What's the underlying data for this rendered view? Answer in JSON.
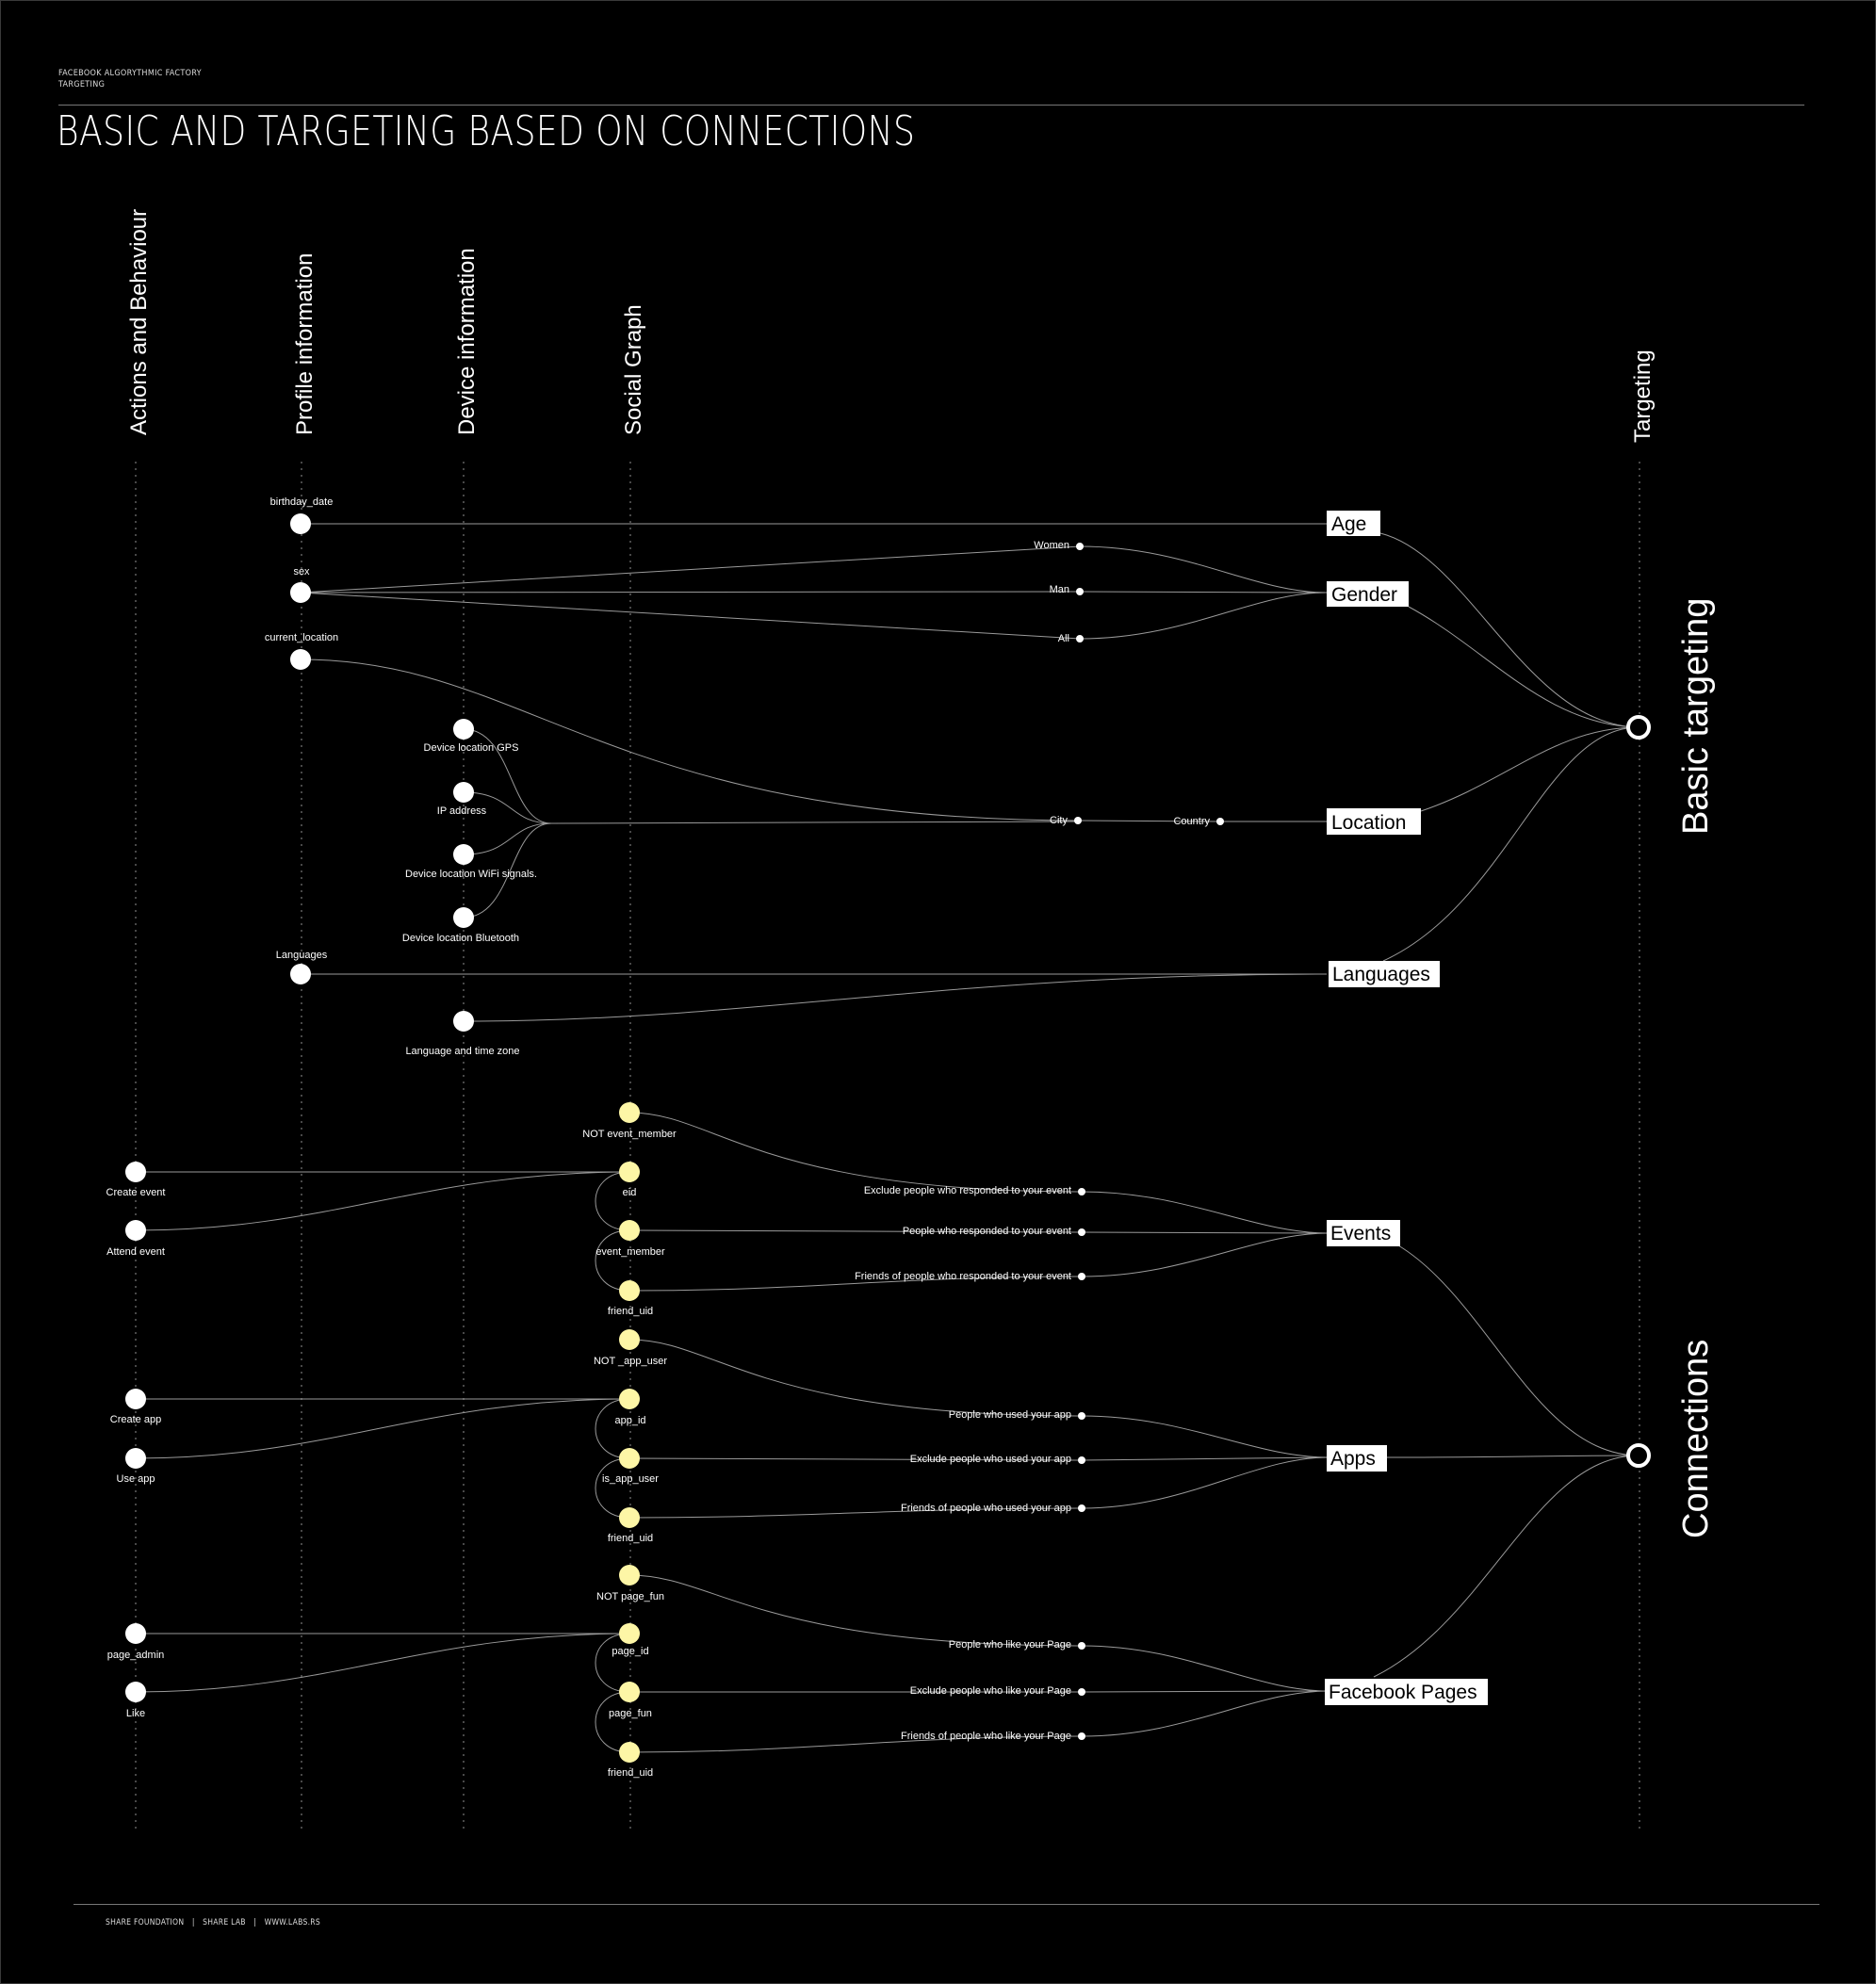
{
  "header": {
    "line1": "FACEBOOK ALGORYTHMIC FACTORY",
    "line2": "TARGETING",
    "title": "BASIC AND TARGETING BASED ON CONNECTIONS"
  },
  "footer": {
    "org": "SHARE FOUNDATION",
    "lab": "SHARE LAB",
    "site": "WWW.LABS.RS"
  },
  "columns": {
    "actions": "Actions and Behaviour",
    "profile": "Profile information",
    "device": "Device information",
    "social": "Social Graph",
    "targeting": "Targeting"
  },
  "groups": {
    "basic": "Basic targeting",
    "connections": "Connections"
  },
  "profile_nodes": {
    "birthday_date": "birthday_date",
    "sex": "sex",
    "current_location": "current_location",
    "languages": "Languages"
  },
  "device_nodes": {
    "gps": "Device location GPS",
    "ip": "IP address",
    "wifi": "Device location WiFi signals.",
    "bluetooth": "Device location Bluetooth",
    "lang_tz": "Language and time zone"
  },
  "options": {
    "women": "Women",
    "man": "Man",
    "all": "All",
    "city": "City",
    "country": "Country"
  },
  "targets": {
    "age": "Age",
    "gender": "Gender",
    "location": "Location",
    "languages": "Languages",
    "events": "Events",
    "apps": "Apps",
    "pages": "Facebook Pages"
  },
  "events_block": {
    "actions": [
      "Create event",
      "Attend event"
    ],
    "social": [
      "NOT event_member",
      "eid",
      "event_member",
      "friend_uid"
    ],
    "options": [
      "Exclude people who responded to your event",
      "People who responded to your event",
      "Friends of people who responded to your event"
    ]
  },
  "apps_block": {
    "actions": [
      "Create app",
      "Use app"
    ],
    "social": [
      "NOT _app_user",
      "app_id",
      "is_app_user",
      "friend_uid"
    ],
    "options": [
      "People who used your app",
      "Exclude people who used your app",
      "Friends of people who used your app"
    ]
  },
  "pages_block": {
    "actions": [
      "page_admin",
      "Like"
    ],
    "social": [
      "NOT  page_fun",
      "page_id",
      "page_fun",
      "friend_uid"
    ],
    "options": [
      "People who like your Page",
      "Exclude people who like your Page",
      "Friends of people who like your Page"
    ]
  },
  "colors": {
    "background": "#000000",
    "node": "#ffffff",
    "social_node": "#fdf6a6",
    "link": "#9a9a9a"
  }
}
